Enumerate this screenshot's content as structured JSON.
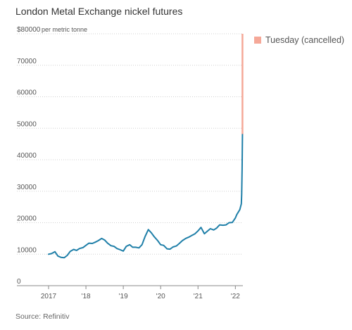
{
  "title": "London Metal Exchange nickel futures",
  "source": "Source: Refinitiv",
  "colors": {
    "line": "#1f7fa8",
    "cancelled": "#f5a898",
    "grid": "#d0d0d0",
    "axis": "#888888"
  },
  "chart_data": {
    "type": "line",
    "title": "London Metal Exchange nickel futures",
    "ylabel": "per metric tonne",
    "y_unit_note": "per metric tonne",
    "ylim": [
      0,
      80000
    ],
    "xlim": [
      2017.0,
      2022.22
    ],
    "yticks": [
      0,
      10000,
      20000,
      30000,
      40000,
      50000,
      60000,
      70000,
      80000
    ],
    "ytick_labels": [
      "0",
      "10000",
      "20000",
      "30000",
      "40000",
      "50000",
      "60000",
      "70000",
      "$80000"
    ],
    "xticks": [
      2017,
      2018,
      2019,
      2020,
      2021,
      2022
    ],
    "xtick_labels": [
      "2017",
      "'18",
      "'19",
      "'20",
      "'21",
      "'22"
    ],
    "grid": true,
    "legend_placement": "top-right",
    "series": [
      {
        "x": [
          2017.0,
          2017.08,
          2017.17,
          2017.25,
          2017.33,
          2017.42,
          2017.5,
          2017.58,
          2017.67,
          2017.75,
          2017.83,
          2017.92,
          2018.0,
          2018.08,
          2018.17,
          2018.25,
          2018.33,
          2018.42,
          2018.5,
          2018.58,
          2018.67,
          2018.75,
          2018.83,
          2018.92,
          2019.0,
          2019.08,
          2019.17,
          2019.25,
          2019.33,
          2019.42,
          2019.5,
          2019.58,
          2019.67,
          2019.75,
          2019.83,
          2019.92,
          2020.0,
          2020.08,
          2020.17,
          2020.25,
          2020.33,
          2020.42,
          2020.5,
          2020.58,
          2020.67,
          2020.75,
          2020.83,
          2020.92,
          2021.0,
          2021.08,
          2021.17,
          2021.25,
          2021.33,
          2021.42,
          2021.5,
          2021.58,
          2021.67,
          2021.75,
          2021.83,
          2021.92,
          2022.0,
          2022.04,
          2022.08,
          2022.12,
          2022.16,
          2022.17,
          2022.18,
          2022.19
        ],
        "y": [
          10000,
          10200,
          10800,
          9400,
          9000,
          8900,
          9600,
          10900,
          11500,
          11200,
          11800,
          12100,
          12800,
          13500,
          13400,
          13800,
          14300,
          15000,
          14500,
          13500,
          12700,
          12500,
          11800,
          11400,
          11000,
          12500,
          13000,
          12200,
          12200,
          12000,
          13000,
          15500,
          17800,
          16800,
          15500,
          14300,
          13000,
          12800,
          11700,
          11600,
          12300,
          12600,
          13400,
          14300,
          15000,
          15400,
          15900,
          16500,
          17400,
          18500,
          16500,
          17300,
          18100,
          17700,
          18300,
          19300,
          19200,
          19300,
          20000,
          20100,
          21500,
          22600,
          23400,
          24200,
          26000,
          29000,
          37000,
          48000
        ]
      },
      {
        "name": "Tuesday (cancelled)",
        "type": "bar",
        "x": 2022.19,
        "y_range": [
          48000,
          80000
        ]
      }
    ]
  }
}
